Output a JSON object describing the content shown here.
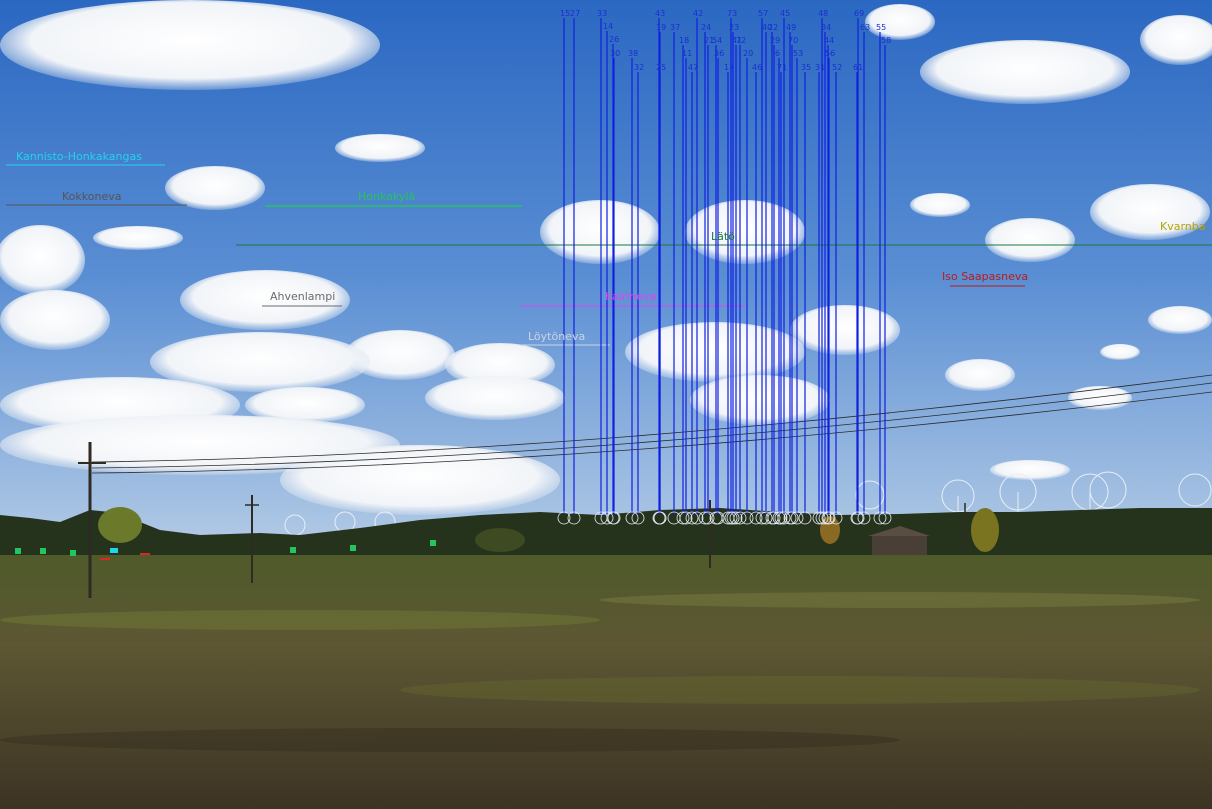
{
  "image": {
    "description_colors": {
      "sky_top": "#2f6fc4",
      "sky_bottom": "#a9c6e6",
      "field_dark": "#3b3424",
      "field_green": "#5c6a2e",
      "turbine_line": "#1020e0"
    }
  },
  "areas": [
    {
      "name": "Kannisto-Honkakangas",
      "color": "#22d3ee"
    },
    {
      "name": "Kokkoneva",
      "color": "#555555"
    },
    {
      "name": "Honkakylä",
      "color": "#22c55e"
    },
    {
      "name": "Lätö",
      "color": "#1a7a3a"
    },
    {
      "name": "Kvarnba",
      "color": "#b5a300"
    },
    {
      "name": "Iso Saapasneva",
      "color": "#b91c1c"
    },
    {
      "name": "Ahvenlampi",
      "color": "#6b6b6b"
    },
    {
      "name": "Kairineva",
      "color": "#d946ef"
    },
    {
      "name": "Löytöneva",
      "color": "#c8d4e4"
    }
  ],
  "turbines": [
    {
      "label": "15"
    },
    {
      "label": "27"
    },
    {
      "label": "33"
    },
    {
      "label": "14"
    },
    {
      "label": "26"
    },
    {
      "label": "30"
    },
    {
      "label": "38"
    },
    {
      "label": "32"
    },
    {
      "label": "43"
    },
    {
      "label": "19"
    },
    {
      "label": "25"
    },
    {
      "label": "37"
    },
    {
      "label": "18"
    },
    {
      "label": "11"
    },
    {
      "label": "47"
    },
    {
      "label": "42"
    },
    {
      "label": "24"
    },
    {
      "label": "21"
    },
    {
      "label": "54"
    },
    {
      "label": "36"
    },
    {
      "label": "17"
    },
    {
      "label": "73"
    },
    {
      "label": "23"
    },
    {
      "label": "41"
    },
    {
      "label": "72"
    },
    {
      "label": "20"
    },
    {
      "label": "46"
    },
    {
      "label": "57"
    },
    {
      "label": "40"
    },
    {
      "label": "22"
    },
    {
      "label": "29"
    },
    {
      "label": "6"
    },
    {
      "label": "71"
    },
    {
      "label": "45"
    },
    {
      "label": "49"
    },
    {
      "label": "70"
    },
    {
      "label": "53"
    },
    {
      "label": "35"
    },
    {
      "label": "31"
    },
    {
      "label": "48"
    },
    {
      "label": "34"
    },
    {
      "label": "44"
    },
    {
      "label": "56"
    },
    {
      "label": "52"
    },
    {
      "label": "69"
    },
    {
      "label": "61"
    },
    {
      "label": "63"
    },
    {
      "label": "55"
    },
    {
      "label": "58"
    }
  ]
}
